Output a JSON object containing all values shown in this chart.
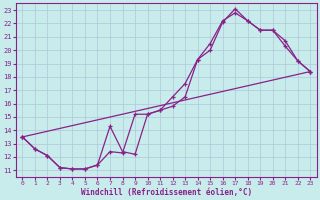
{
  "xlabel": "Windchill (Refroidissement éolien,°C)",
  "background_color": "#c8ecec",
  "grid_color": "#b0c8d8",
  "line_color": "#882288",
  "xlim": [
    -0.5,
    23.5
  ],
  "ylim": [
    10.5,
    23.5
  ],
  "yticks": [
    11,
    12,
    13,
    14,
    15,
    16,
    17,
    18,
    19,
    20,
    21,
    22,
    23
  ],
  "xticks": [
    0,
    1,
    2,
    3,
    4,
    5,
    6,
    7,
    8,
    9,
    10,
    11,
    12,
    13,
    14,
    15,
    16,
    17,
    18,
    19,
    20,
    21,
    22,
    23
  ],
  "line1_x": [
    0,
    1,
    2,
    3,
    4,
    5,
    6,
    7,
    8,
    9,
    10,
    11,
    12,
    13,
    14,
    15,
    16,
    17,
    18,
    19,
    20,
    21,
    22,
    23
  ],
  "line1_y": [
    13.5,
    12.6,
    12.1,
    11.2,
    11.1,
    11.1,
    11.4,
    14.3,
    12.4,
    12.2,
    15.2,
    15.5,
    15.8,
    16.5,
    19.3,
    20.0,
    22.1,
    23.1,
    22.2,
    21.5,
    21.5,
    20.7,
    19.2,
    18.4
  ],
  "line2_x": [
    0,
    1,
    2,
    3,
    4,
    5,
    6,
    7,
    8,
    9,
    10,
    11,
    12,
    13,
    14,
    15,
    16,
    17,
    18,
    19,
    20,
    21,
    22,
    23
  ],
  "line2_y": [
    13.5,
    12.6,
    12.1,
    11.2,
    11.1,
    11.1,
    11.4,
    12.4,
    12.3,
    15.2,
    15.2,
    15.5,
    16.5,
    17.5,
    19.3,
    20.5,
    22.2,
    22.8,
    22.2,
    21.5,
    21.5,
    20.3,
    19.2,
    18.4
  ],
  "line3_x": [
    0,
    23
  ],
  "line3_y": [
    13.5,
    18.4
  ],
  "marker_size": 3.5,
  "linewidth": 0.9
}
